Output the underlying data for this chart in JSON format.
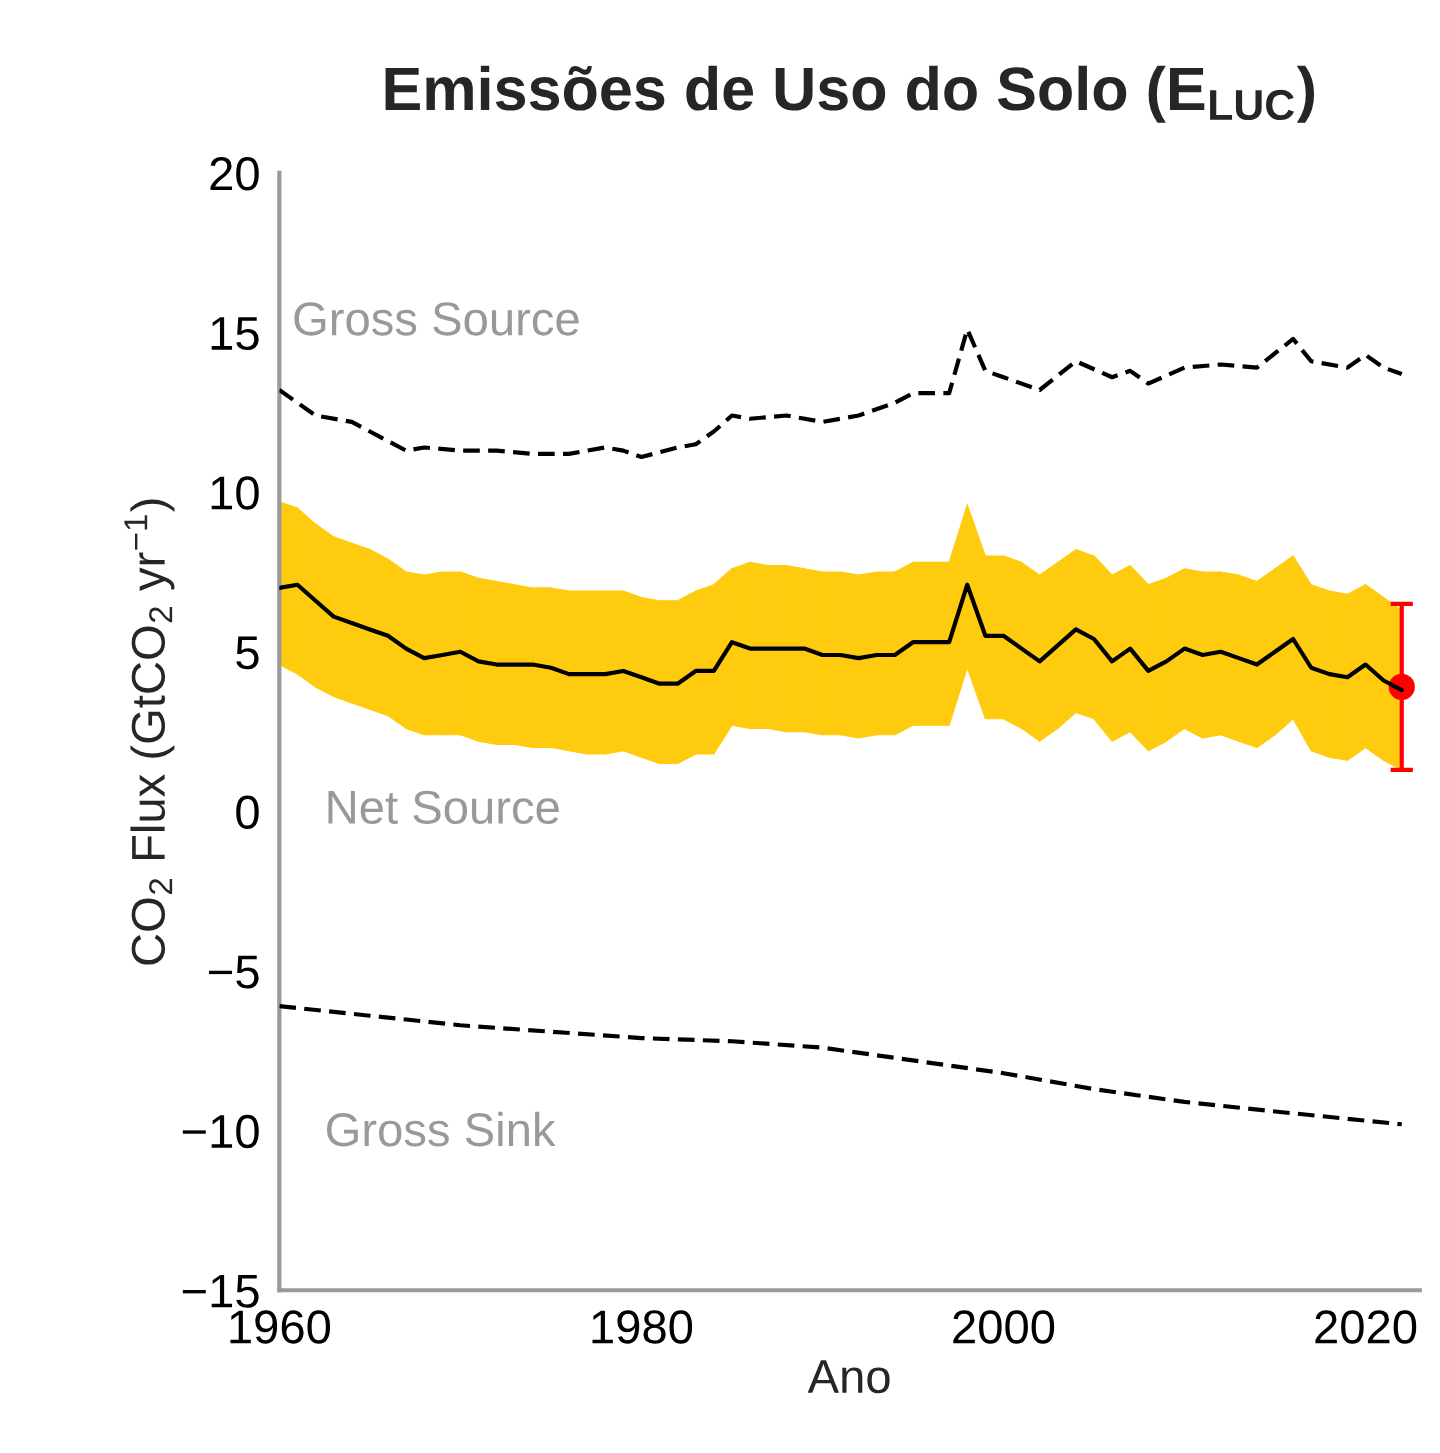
{
  "chart_data": {
    "type": "line",
    "title": "Emissões de Uso do Solo (E$_{LUC}$)",
    "xlabel": "Ano",
    "ylabel": "CO$_{2}$ Flux (GtCO$_{2}$ yr$^{−1}$)",
    "xlim": [
      1960,
      2023
    ],
    "ylim": [
      -15,
      20
    ],
    "xticks": [
      1960,
      1980,
      2000,
      2020
    ],
    "yticks": [
      {
        "value": -15,
        "label": "−15"
      },
      {
        "value": -10,
        "label": "−10"
      },
      {
        "value": -5,
        "label": "−5"
      },
      0,
      5,
      10,
      15,
      20
    ],
    "grid": false,
    "legend": false,
    "series": [
      {
        "name": "Gross Source",
        "color": "#000000",
        "line_style": "dashed",
        "x": [
          1960,
          1962,
          1964,
          1966,
          1967,
          1968,
          1970,
          1972,
          1974,
          1976,
          1978,
          1979,
          1980,
          1982,
          1983,
          1984,
          1985,
          1986,
          1988,
          1990,
          1992,
          1994,
          1995,
          1997,
          1998,
          1999,
          2000,
          2002,
          2004,
          2006,
          2007,
          2008,
          2010,
          2012,
          2014,
          2016,
          2017,
          2019,
          2020,
          2021,
          2022
        ],
        "values": [
          13.2,
          12.4,
          12.2,
          11.6,
          11.3,
          11.4,
          11.3,
          11.3,
          11.2,
          11.2,
          11.4,
          11.3,
          11.1,
          11.4,
          11.5,
          11.9,
          12.4,
          12.3,
          12.4,
          12.2,
          12.4,
          12.8,
          13.1,
          13.1,
          15.1,
          13.8,
          13.6,
          13.2,
          14.1,
          13.6,
          13.8,
          13.4,
          13.9,
          14.0,
          13.9,
          14.8,
          14.1,
          13.9,
          14.3,
          13.9,
          13.7
        ]
      },
      {
        "name": "Net Source",
        "color": "#000000",
        "colors": [
          "#ffcb0f",
          "#ffcb0f",
          "#ffcb0f",
          "#ffcb0f",
          "#ffcb0f",
          "#ffcb0f",
          "#ffcb0f",
          "#ffcb0f",
          "#ffcb0f",
          "#ffcb0f",
          "#ffcb0f",
          "#ffcb0f",
          "#ffcb0f",
          "#ffcb0f",
          "#ffcb0f",
          "#ffcb0f",
          "#ffcb0f",
          "#ffcb0f",
          "#ffcb0f",
          "#ffcb0f",
          "#ffcb0f",
          "#ffcb0f",
          "#ffcb0f",
          "#ffcb0f",
          "#ffcb0f",
          "#ffcb0f",
          "#ffcb0f",
          "#ffcb0f",
          "#ffcb0f",
          "#ffcb0f",
          "#ffcb0f",
          "#ffcb0f",
          "#ffcb0f",
          "#ffcb0f",
          "#ffcb0f",
          "#ffcb0f",
          "#ffcb0f",
          "#ffcb0f",
          "#ffcb0f",
          "#ffcb0f",
          "#ffcb0f",
          "#ffcb0f",
          "#ffcb0f",
          "#ffcb0f",
          "#ffcb0f",
          "#ffcb0f",
          "#ffcb0f",
          "#ffcb0f",
          "#ffcb0f",
          "#ffcb0f",
          "#ffcb0f",
          "#ffcb0f",
          "#ffcb0f",
          "#ffcb0f",
          "#ffcb0f",
          "#ffcb0f",
          "#ffcb0f",
          "#ffcb0f",
          "#ffcb0f",
          "#ffcb0f",
          "#ffcb0f",
          "#ffcb0f",
          "#ffcb0f"
        ],
        "line_style": "solid",
        "x": [
          1960,
          1961,
          1962,
          1963,
          1964,
          1965,
          1966,
          1967,
          1968,
          1969,
          1970,
          1971,
          1972,
          1973,
          1974,
          1975,
          1976,
          1977,
          1978,
          1979,
          1980,
          1981,
          1982,
          1983,
          1984,
          1985,
          1986,
          1987,
          1988,
          1989,
          1990,
          1991,
          1992,
          1993,
          1994,
          1995,
          1996,
          1997,
          1998,
          1999,
          2000,
          2001,
          2002,
          2003,
          2004,
          2005,
          2006,
          2007,
          2008,
          2009,
          2010,
          2011,
          2012,
          2013,
          2014,
          2015,
          2016,
          2017,
          2018,
          2019,
          2020,
          2021,
          2022
        ],
        "values": [
          7.0,
          7.1,
          6.6,
          6.1,
          5.9,
          5.7,
          5.5,
          5.1,
          4.8,
          4.9,
          5.0,
          4.7,
          4.6,
          4.6,
          4.6,
          4.5,
          4.3,
          4.3,
          4.3,
          4.4,
          4.2,
          4.0,
          4.0,
          4.4,
          4.4,
          5.3,
          5.1,
          5.1,
          5.1,
          5.1,
          4.9,
          4.9,
          4.8,
          4.9,
          4.9,
          5.3,
          5.3,
          5.3,
          7.1,
          5.5,
          5.5,
          5.1,
          4.7,
          5.2,
          5.7,
          5.4,
          4.7,
          5.1,
          4.4,
          4.7,
          5.1,
          4.9,
          5.0,
          4.8,
          4.6,
          5.0,
          5.4,
          4.5,
          4.3,
          4.2,
          4.6,
          4.1,
          3.8
        ],
        "upper": [
          9.7,
          9.5,
          9.0,
          8.6,
          8.4,
          8.2,
          7.9,
          7.5,
          7.4,
          7.5,
          7.5,
          7.3,
          7.2,
          7.1,
          7.0,
          7.0,
          6.9,
          6.9,
          6.9,
          6.9,
          6.7,
          6.6,
          6.6,
          6.9,
          7.1,
          7.6,
          7.8,
          7.7,
          7.7,
          7.6,
          7.5,
          7.5,
          7.4,
          7.5,
          7.5,
          7.8,
          7.8,
          7.8,
          9.6,
          8.0,
          8.0,
          7.8,
          7.4,
          7.8,
          8.2,
          8.0,
          7.4,
          7.7,
          7.1,
          7.3,
          7.6,
          7.5,
          7.5,
          7.4,
          7.2,
          7.6,
          8.0,
          7.1,
          6.9,
          6.8,
          7.1,
          6.7,
          6.3
        ],
        "lower": [
          4.6,
          4.3,
          3.9,
          3.6,
          3.4,
          3.2,
          3.0,
          2.6,
          2.4,
          2.4,
          2.4,
          2.2,
          2.1,
          2.1,
          2.0,
          2.0,
          1.9,
          1.8,
          1.8,
          1.9,
          1.7,
          1.5,
          1.5,
          1.8,
          1.8,
          2.7,
          2.6,
          2.6,
          2.5,
          2.5,
          2.4,
          2.4,
          2.3,
          2.4,
          2.4,
          2.7,
          2.7,
          2.7,
          4.5,
          2.9,
          2.9,
          2.6,
          2.2,
          2.6,
          3.1,
          2.9,
          2.2,
          2.5,
          1.9,
          2.2,
          2.6,
          2.3,
          2.4,
          2.2,
          2.0,
          2.4,
          2.9,
          1.9,
          1.7,
          1.6,
          2.0,
          1.6,
          1.3
        ]
      },
      {
        "name": "Gross Sink",
        "color": "#000000",
        "line_style": "dashed",
        "x": [
          1960,
          1965,
          1970,
          1975,
          1980,
          1985,
          1990,
          1995,
          2000,
          2005,
          2010,
          2015,
          2022
        ],
        "values": [
          -6.1,
          -6.4,
          -6.7,
          -6.9,
          -7.1,
          -7.2,
          -7.4,
          -7.8,
          -8.2,
          -8.7,
          -9.1,
          -9.4,
          -9.8
        ]
      },
      {
        "type": "scatter",
        "color": "#ff0000",
        "x": [
          2022
        ],
        "values": [
          3.9
        ],
        "errors": [
          [
            1.3,
            6.5
          ]
        ]
      }
    ]
  }
}
